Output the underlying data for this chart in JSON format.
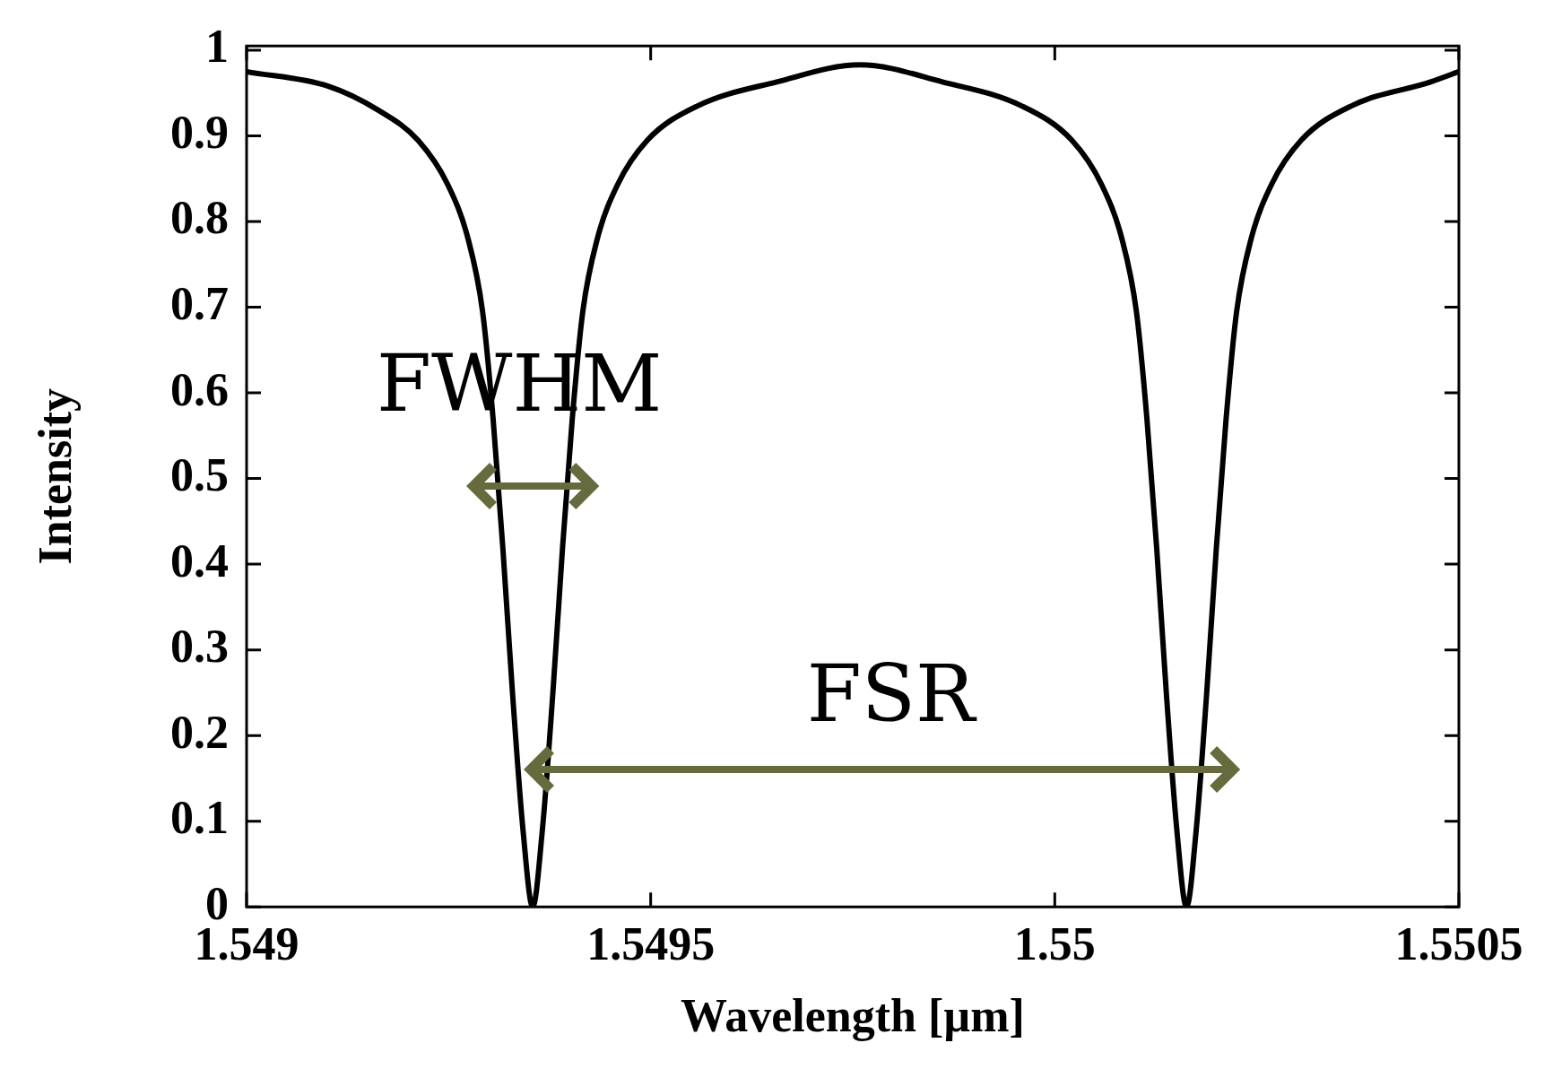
{
  "chart_data": {
    "type": "line",
    "xlabel": "Wavelength [µm]",
    "ylabel": "Intensity",
    "xlim": [
      1.549,
      1.5505
    ],
    "xticks": [
      1.549,
      1.5495,
      1.55,
      1.5505
    ],
    "ylim": [
      0,
      1.005
    ],
    "yticks": [
      0,
      0.1,
      0.2,
      0.3,
      0.4,
      0.5,
      0.6,
      0.7,
      0.8,
      0.9,
      1
    ],
    "grid": false,
    "legend": false,
    "marker": "none",
    "line_style": "solid",
    "series": [
      {
        "color": "#000000",
        "x": [
          1.549,
          1.549101,
          1.549163,
          1.549212,
          1.549249,
          1.549274,
          1.549292,
          1.549305,
          1.549317,
          1.549329,
          1.549342,
          1.549354,
          1.549366,
          1.549379,
          1.549391,
          1.549403,
          1.549416,
          1.549434,
          1.549459,
          1.549496,
          1.549558,
          1.549656,
          1.549759,
          1.549861,
          1.549959,
          1.550021,
          1.550058,
          1.550083,
          1.550101,
          1.550114,
          1.550126,
          1.550138,
          1.550151,
          1.550163,
          1.550175,
          1.550188,
          1.5502,
          1.550212,
          1.550225,
          1.550243,
          1.550268,
          1.550305,
          1.550367,
          1.550465,
          1.5505
        ],
        "values": [
          0.975,
          0.958,
          0.93,
          0.895,
          0.843,
          0.78,
          0.695,
          0.57,
          0.42,
          0.25,
          0.09,
          0,
          0.09,
          0.25,
          0.42,
          0.57,
          0.695,
          0.78,
          0.843,
          0.895,
          0.935,
          0.963,
          0.983,
          0.963,
          0.935,
          0.895,
          0.843,
          0.78,
          0.695,
          0.57,
          0.42,
          0.25,
          0.09,
          0,
          0.09,
          0.25,
          0.42,
          0.57,
          0.695,
          0.78,
          0.843,
          0.895,
          0.935,
          0.963,
          0.975
        ]
      }
    ],
    "annotations": [
      "FWHM",
      "FSR"
    ]
  }
}
